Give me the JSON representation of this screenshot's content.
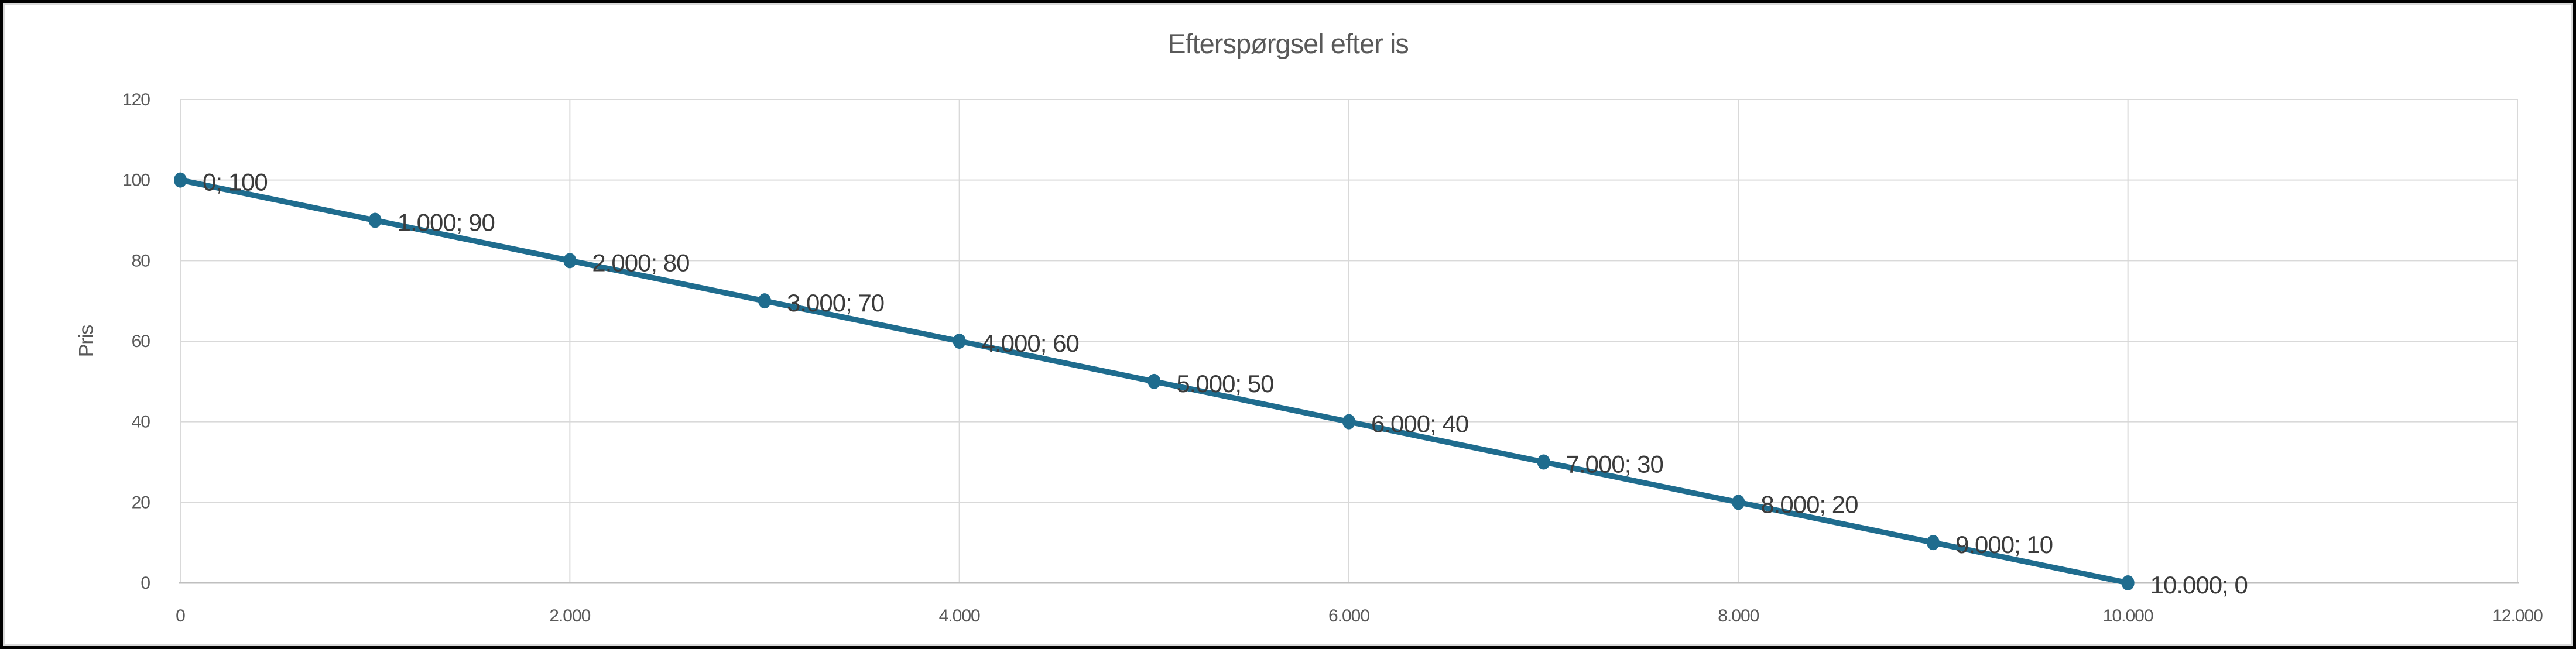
{
  "chart_data": {
    "type": "line",
    "title": "Efterspørgsel efter is",
    "xlabel": "",
    "ylabel": "Pris",
    "x": [
      0,
      1000,
      2000,
      3000,
      4000,
      5000,
      6000,
      7000,
      8000,
      9000,
      10000
    ],
    "y": [
      100,
      90,
      80,
      70,
      60,
      50,
      40,
      30,
      20,
      10,
      0
    ],
    "point_labels": [
      "0; 100",
      "1.000; 90",
      "2.000; 80",
      "3.000; 70",
      "4.000; 60",
      "5.000; 50",
      "6.000; 40",
      "7.000; 30",
      "8.000; 20",
      "9.000; 10",
      "10.000; 0"
    ],
    "xlim": [
      0,
      12000
    ],
    "ylim": [
      0,
      120
    ],
    "x_tick_values": [
      0,
      2000,
      4000,
      6000,
      8000,
      10000,
      12000
    ],
    "x_tick_labels": [
      "0",
      "2.000",
      "4.000",
      "6.000",
      "8.000",
      "10.000",
      "12.000"
    ],
    "y_tick_values": [
      0,
      20,
      40,
      60,
      80,
      100,
      120
    ],
    "y_tick_labels": [
      "0",
      "20",
      "40",
      "60",
      "80",
      "100",
      "120"
    ],
    "grid": true,
    "legend": "none",
    "colors": {
      "line": "#1f6c8e",
      "marker": "#1f6c8e",
      "gridline": "#d9d9d9",
      "axis_line": "#bfbfbf",
      "tick_text": "#595959",
      "title_text": "#595959",
      "data_label_text": "#3b3b3b",
      "frame": "#000000",
      "chart_border": "#d9d9d9",
      "background": "#ffffff"
    }
  }
}
